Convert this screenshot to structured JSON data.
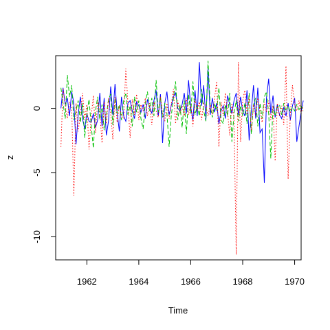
{
  "chart_data": {
    "type": "line",
    "title": "",
    "xlabel": "Time",
    "ylabel": "z",
    "xlim": [
      1960.8,
      1970.25
    ],
    "ylim": [
      -11.8,
      4.1
    ],
    "xticks": [
      1962,
      1964,
      1966,
      1968,
      1970
    ],
    "yticks": [
      0,
      -5,
      -10
    ],
    "grid": false,
    "legend": "none",
    "x_start": 1961.0,
    "x_step": 0.08333333,
    "series": [
      {
        "color": "#0000ff",
        "style": "solid",
        "values": [
          0.0,
          1.6,
          0.3,
          0.8,
          -0.6,
          1.3,
          0.4,
          -2.8,
          -0.5,
          0.9,
          -0.8,
          -1.6,
          -0.4,
          -1.0,
          -1.1,
          -0.4,
          -1.5,
          -0.9,
          1.2,
          -1.4,
          0.8,
          -2.1,
          -1.0,
          1.7,
          -0.5,
          1.9,
          -0.3,
          -1.8,
          0.9,
          -0.6,
          -1.0,
          0.4,
          0.6,
          -0.2,
          -0.8,
          0.5,
          0.2,
          -0.3,
          0.3,
          -0.8,
          0.7,
          0.1,
          -0.4,
          0.6,
          1.4,
          -0.6,
          1.1,
          -2.7,
          0.4,
          1.3,
          -0.5,
          0.2,
          0.9,
          1.2,
          0.0,
          -0.2,
          0.3,
          1.2,
          -0.4,
          2.2,
          0.1,
          -0.9,
          1.4,
          -0.6,
          3.6,
          0.2,
          1.8,
          -0.9,
          3.1,
          -0.5,
          0.8,
          -0.3,
          0.4,
          -1.2,
          -0.2,
          0.2,
          -0.8,
          1.0,
          0.3,
          -0.4,
          0.6,
          1.2,
          -0.5,
          0.9,
          -0.2,
          -0.6,
          1.4,
          -2.5,
          -0.2,
          1.8,
          -0.8,
          1.6,
          -1.9,
          -1.6,
          -5.8,
          0.8,
          2.3,
          -0.4,
          1.0,
          -0.7,
          0.3,
          -0.5,
          -0.8,
          0.1,
          -0.6,
          0.4,
          -0.9,
          0.2,
          0.8,
          -2.6,
          -1.4,
          -0.3,
          0.6
        ]
      },
      {
        "color": "#00c000",
        "style": "dashed",
        "values": [
          1.6,
          0.4,
          -0.8,
          2.6,
          0.9,
          1.8,
          -0.9,
          -0.2,
          0.6,
          -1.1,
          0.4,
          -2.3,
          -0.4,
          0.7,
          -1.3,
          -3.1,
          -0.2,
          0.9,
          -0.9,
          0.3,
          -1.7,
          -0.6,
          0.7,
          1.1,
          -1.3,
          0.8,
          -0.4,
          0.3,
          -0.9,
          0.6,
          1.2,
          -0.5,
          0.2,
          -1.4,
          0.9,
          -0.3,
          0.6,
          -0.8,
          -1.6,
          0.4,
          1.3,
          -0.2,
          0.8,
          -0.6,
          2.2,
          -0.3,
          0.9,
          -0.7,
          0.4,
          -0.4,
          -3.0,
          -0.6,
          0.8,
          2.1,
          -0.9,
          0.3,
          -1.5,
          0.6,
          -2.0,
          1.1,
          -0.4,
          2.1,
          -0.5,
          0.2,
          -0.6,
          1.5,
          -0.2,
          -1.0,
          3.7,
          0.2,
          -0.7,
          0.4,
          -0.2,
          1.6,
          -0.9,
          -1.2,
          0.3,
          -0.6,
          1.2,
          -2.6,
          -0.4,
          0.6,
          -1.0,
          0.2,
          -0.6,
          0.4,
          -1.2,
          1.2,
          -2.0,
          0.3,
          0.8,
          -1.4,
          0.4,
          -0.8,
          0.9,
          1.3,
          -0.4,
          -3.9,
          0.2,
          -0.6,
          0.1,
          0.3,
          -0.5,
          0.4,
          -0.2,
          0.2,
          -0.3,
          0.1,
          -0.2,
          0.3,
          -0.1,
          0.2,
          -0.2
        ]
      },
      {
        "color": "#ff0000",
        "style": "dotted",
        "values": [
          -3.0,
          1.5,
          0.2,
          -0.8,
          0.5,
          0.1,
          -6.8,
          0.4,
          -1.8,
          -0.5,
          1.2,
          -0.9,
          0.3,
          -3.2,
          -0.7,
          1.0,
          -1.9,
          0.6,
          -0.3,
          -2.7,
          0.5,
          -1.2,
          0.8,
          -0.4,
          -2.4,
          0.9,
          -1.1,
          0.2,
          -0.6,
          -0.8,
          3.1,
          0.4,
          -2.3,
          0.7,
          -0.5,
          1.1,
          -0.9,
          0.3,
          -0.2,
          0.8,
          -0.6,
          0.4,
          -1.3,
          0.5,
          -0.2,
          -0.7,
          0.9,
          -0.4,
          -1.0,
          0.4,
          -0.8,
          0.3,
          1.5,
          -1.2,
          0.6,
          -0.4,
          0.2,
          -0.6,
          0.8,
          -0.5,
          0.3,
          -1.4,
          0.7,
          -0.2,
          0.5,
          -0.9,
          0.4,
          0.2,
          -0.6,
          0.3,
          -0.5,
          0.8,
          2.1,
          -3.0,
          0.5,
          -0.6,
          1.2,
          -0.3,
          -2.1,
          0.4,
          -0.8,
          -11.4,
          3.6,
          -2.6,
          0.6,
          1.4,
          -0.5,
          0.9,
          -1.7,
          0.3,
          -0.6,
          0.8,
          -0.2,
          -1.1,
          0.5,
          -0.3,
          0.6,
          -0.9,
          0.2,
          -4.1,
          0.4,
          -0.6,
          0.2,
          -1.3,
          3.3,
          -5.5,
          -0.4,
          1.8,
          0.3,
          -0.2,
          0.6,
          -0.4,
          0.2
        ]
      }
    ]
  }
}
